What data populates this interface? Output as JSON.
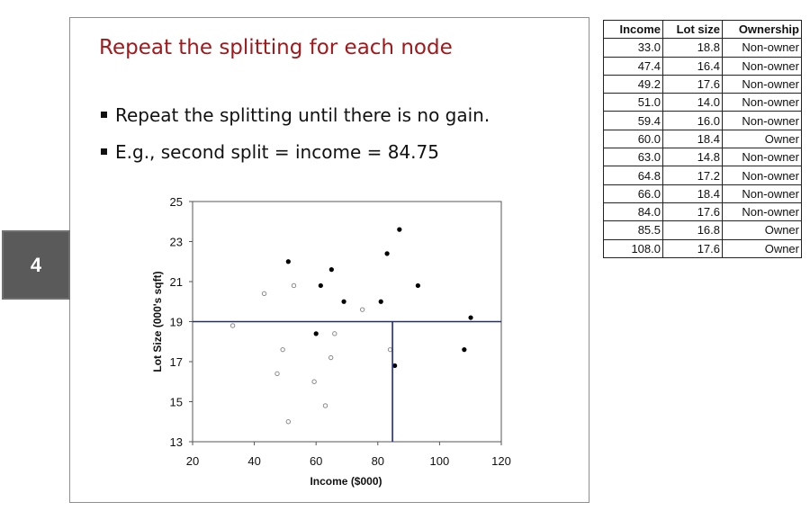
{
  "slide": {
    "title": "Repeat the splitting for each node",
    "bullets": [
      "Repeat the splitting until there is no gain.",
      "E.g., second split = income = 84.75"
    ],
    "page_number": "4"
  },
  "table": {
    "headers": [
      "Income",
      "Lot size",
      "Ownership"
    ],
    "rows": [
      [
        "33.0",
        "18.8",
        "Non-owner"
      ],
      [
        "47.4",
        "16.4",
        "Non-owner"
      ],
      [
        "49.2",
        "17.6",
        "Non-owner"
      ],
      [
        "51.0",
        "14.0",
        "Non-owner"
      ],
      [
        "59.4",
        "16.0",
        "Non-owner"
      ],
      [
        "60.0",
        "18.4",
        "Owner"
      ],
      [
        "63.0",
        "14.8",
        "Non-owner"
      ],
      [
        "64.8",
        "17.2",
        "Non-owner"
      ],
      [
        "66.0",
        "18.4",
        "Non-owner"
      ],
      [
        "84.0",
        "17.6",
        "Non-owner"
      ],
      [
        "85.5",
        "16.8",
        "Owner"
      ],
      [
        "108.0",
        "17.6",
        "Owner"
      ]
    ]
  },
  "chart_data": {
    "type": "scatter",
    "xlabel": "Income ($000)",
    "ylabel": "Lot Size (000's sqft)",
    "xlim": [
      20,
      120
    ],
    "ylim": [
      13,
      25
    ],
    "xticks": [
      20,
      40,
      60,
      80,
      100,
      120
    ],
    "yticks": [
      13,
      15,
      17,
      19,
      21,
      23,
      25
    ],
    "grid": false,
    "legend": "none",
    "series": [
      {
        "marker": "filled",
        "color": "#000000",
        "points": [
          [
            51.0,
            22.0
          ],
          [
            65.0,
            21.6
          ],
          [
            61.5,
            20.8
          ],
          [
            69.0,
            20.0
          ],
          [
            81.0,
            20.0
          ],
          [
            83.0,
            22.4
          ],
          [
            87.0,
            23.6
          ],
          [
            93.0,
            20.8
          ],
          [
            110.1,
            19.2
          ],
          [
            60.0,
            18.4
          ],
          [
            85.5,
            16.8
          ],
          [
            108.0,
            17.6
          ]
        ]
      },
      {
        "marker": "open",
        "color": "#8a8a8a",
        "points": [
          [
            43.2,
            20.4
          ],
          [
            52.8,
            20.8
          ],
          [
            75.0,
            19.6
          ],
          [
            33.0,
            18.8
          ],
          [
            49.2,
            17.6
          ],
          [
            47.4,
            16.4
          ],
          [
            51.0,
            14.0
          ],
          [
            59.4,
            16.0
          ],
          [
            63.0,
            14.8
          ],
          [
            64.8,
            17.2
          ],
          [
            66.0,
            18.4
          ],
          [
            84.0,
            17.6
          ]
        ]
      }
    ],
    "split_lines": [
      {
        "orientation": "horizontal",
        "value": 19,
        "from": 20,
        "to": 120
      },
      {
        "orientation": "vertical",
        "value": 84.75,
        "from": 13,
        "to": 19
      }
    ],
    "split_color": "#1f2a8a"
  }
}
